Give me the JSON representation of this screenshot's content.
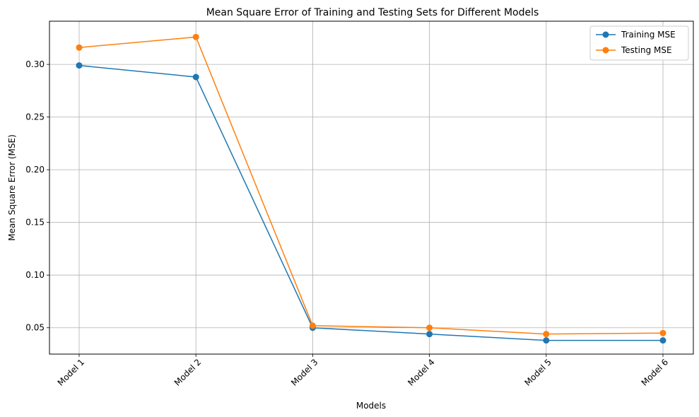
{
  "chart_data": {
    "type": "line",
    "title": "Mean Square Error of Training and Testing Sets for Different Models",
    "xlabel": "Models",
    "ylabel": "Mean Square Error (MSE)",
    "categories": [
      "Model 1",
      "Model 2",
      "Model 3",
      "Model 4",
      "Model 5",
      "Model 6"
    ],
    "ylim": [
      0.025,
      0.341
    ],
    "yticks": [
      0.05,
      0.1,
      0.15,
      0.2,
      0.25,
      0.3
    ],
    "ytick_labels": [
      "0.05",
      "0.10",
      "0.15",
      "0.20",
      "0.25",
      "0.30"
    ],
    "grid": true,
    "legend_position": "top-right",
    "series": [
      {
        "name": "Training MSE",
        "color": "#1f77b4",
        "values": [
          0.299,
          0.288,
          0.05,
          0.044,
          0.038,
          0.038
        ]
      },
      {
        "name": "Testing MSE",
        "color": "#ff7f0e",
        "values": [
          0.316,
          0.326,
          0.052,
          0.05,
          0.044,
          0.045
        ]
      }
    ]
  }
}
